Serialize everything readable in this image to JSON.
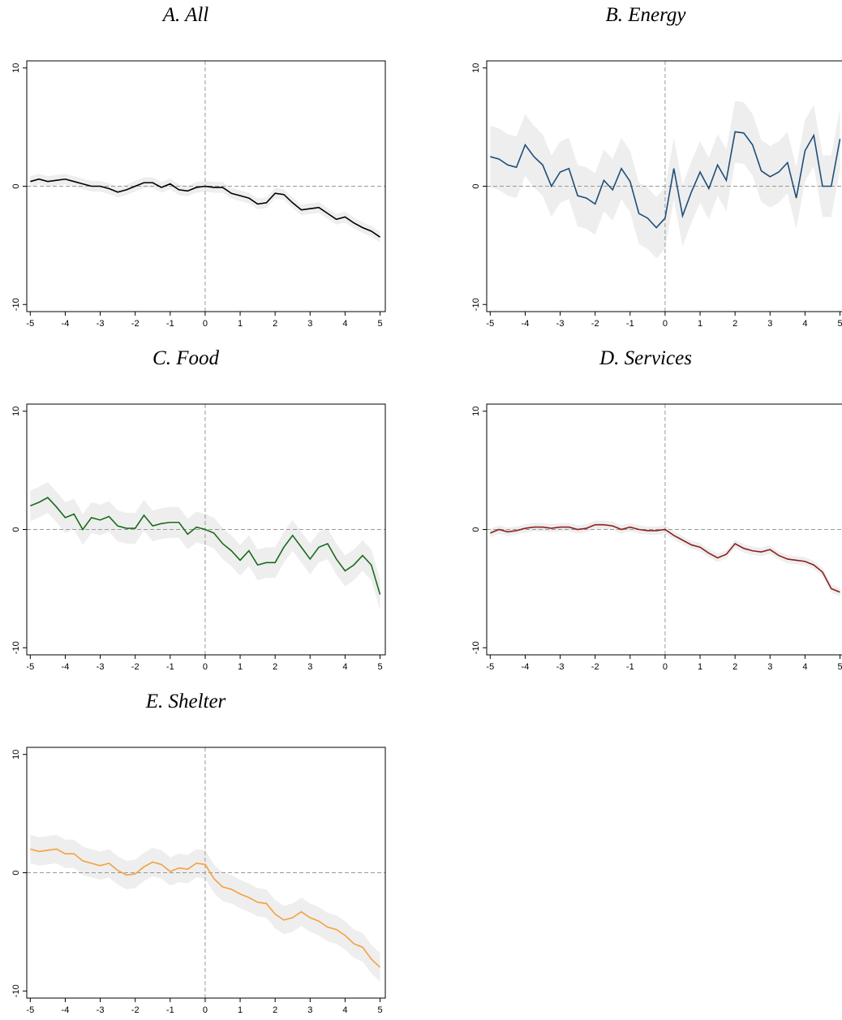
{
  "chart_data": [
    {
      "type": "line",
      "title": "A. All",
      "x": [
        -5,
        -4.75,
        -4.5,
        -4.25,
        -4,
        -3.75,
        -3.5,
        -3.25,
        -3,
        -2.75,
        -2.5,
        -2.25,
        -2,
        -1.75,
        -1.5,
        -1.25,
        -1,
        -0.75,
        -0.5,
        -0.25,
        0,
        0.25,
        0.5,
        0.75,
        1,
        1.25,
        1.5,
        1.75,
        2,
        2.25,
        2.5,
        2.75,
        3,
        3.25,
        3.5,
        3.75,
        4,
        4.25,
        4.5,
        4.75,
        5
      ],
      "series": [
        {
          "color": "#000000",
          "band_color": "#eeeeee",
          "error": 0.45,
          "values": [
            0.4,
            0.6,
            0.4,
            0.5,
            0.6,
            0.4,
            0.2,
            0,
            0,
            -0.2,
            -0.5,
            -0.3,
            0,
            0.3,
            0.3,
            -0.1,
            0.2,
            -0.3,
            -0.4,
            -0.1,
            0,
            -0.1,
            -0.1,
            -0.6,
            -0.8,
            -1,
            -1.5,
            -1.4,
            -0.6,
            -0.7,
            -1.4,
            -2,
            -1.9,
            -1.8,
            -2.3,
            -2.8,
            -2.6,
            -3.1,
            -3.5,
            -3.8,
            -4.3
          ]
        }
      ],
      "xlim": [
        -5.1,
        5.15
      ],
      "ylim": [
        -10.6,
        10.6
      ],
      "xticks": [
        -5,
        -4,
        -3,
        -2,
        -1,
        0,
        1,
        2,
        3,
        4,
        5
      ],
      "yticks": [
        -10,
        0,
        10
      ],
      "hline": 0,
      "vline": 0
    },
    {
      "type": "line",
      "title": "B. Energy",
      "x": [
        -5,
        -4.75,
        -4.5,
        -4.25,
        -4,
        -3.75,
        -3.5,
        -3.25,
        -3,
        -2.75,
        -2.5,
        -2.25,
        -2,
        -1.75,
        -1.5,
        -1.25,
        -1,
        -0.75,
        -0.5,
        -0.25,
        0,
        0.25,
        0.5,
        0.75,
        1,
        1.25,
        1.5,
        1.75,
        2,
        2.25,
        2.5,
        2.75,
        3,
        3.25,
        3.5,
        3.75,
        4,
        4.25,
        4.5,
        4.75,
        5
      ],
      "series": [
        {
          "color": "#1f4e79",
          "band_color": "#eeeeee",
          "error": 2.6,
          "values": [
            2.5,
            2.3,
            1.8,
            1.6,
            3.5,
            2.5,
            1.8,
            0,
            1.2,
            1.5,
            -0.8,
            -1,
            -1.5,
            0.5,
            -0.3,
            1.5,
            0.4,
            -2.3,
            -2.7,
            -3.5,
            -2.7,
            1.5,
            -2.5,
            -0.5,
            1.2,
            -0.2,
            1.8,
            0.5,
            4.6,
            4.5,
            3.5,
            1.3,
            0.8,
            1.2,
            2,
            -1,
            3,
            4.3,
            0,
            0,
            4
          ]
        }
      ],
      "xlim": [
        -5.1,
        5.15
      ],
      "ylim": [
        -10.6,
        10.6
      ],
      "xticks": [
        -5,
        -4,
        -3,
        -2,
        -1,
        0,
        1,
        2,
        3,
        4,
        5
      ],
      "yticks": [
        -10,
        0,
        10
      ],
      "hline": 0,
      "vline": 0
    },
    {
      "type": "line",
      "title": "C. Food",
      "x": [
        -5,
        -4.75,
        -4.5,
        -4.25,
        -4,
        -3.75,
        -3.5,
        -3.25,
        -3,
        -2.75,
        -2.5,
        -2.25,
        -2,
        -1.75,
        -1.5,
        -1.25,
        -1,
        -0.75,
        -0.5,
        -0.25,
        0,
        0.25,
        0.5,
        0.75,
        1,
        1.25,
        1.5,
        1.75,
        2,
        2.25,
        2.5,
        2.75,
        3,
        3.25,
        3.5,
        3.75,
        4,
        4.25,
        4.5,
        4.75,
        5
      ],
      "series": [
        {
          "color": "#1a6b1a",
          "band_color": "#eeeeee",
          "error": 1.3,
          "values": [
            2,
            2.3,
            2.7,
            1.9,
            1,
            1.3,
            0,
            1,
            0.8,
            1.1,
            0.3,
            0.1,
            0.1,
            1.2,
            0.3,
            0.5,
            0.6,
            0.6,
            -0.4,
            0.2,
            0,
            -0.3,
            -1.2,
            -1.8,
            -2.6,
            -1.8,
            -3,
            -2.8,
            -2.8,
            -1.5,
            -0.5,
            -1.5,
            -2.5,
            -1.5,
            -1.2,
            -2.5,
            -3.5,
            -3,
            -2.2,
            -3,
            -5.5
          ]
        }
      ],
      "xlim": [
        -5.1,
        5.15
      ],
      "ylim": [
        -10.6,
        10.6
      ],
      "xticks": [
        -5,
        -4,
        -3,
        -2,
        -1,
        0,
        1,
        2,
        3,
        4,
        5
      ],
      "yticks": [
        -10,
        0,
        10
      ],
      "hline": 0,
      "vline": 0
    },
    {
      "type": "line",
      "title": "D. Services",
      "x": [
        -5,
        -4.75,
        -4.5,
        -4.25,
        -4,
        -3.75,
        -3.5,
        -3.25,
        -3,
        -2.75,
        -2.5,
        -2.25,
        -2,
        -1.75,
        -1.5,
        -1.25,
        -1,
        -0.75,
        -0.5,
        -0.25,
        0,
        0.25,
        0.5,
        0.75,
        1,
        1.25,
        1.5,
        1.75,
        2,
        2.25,
        2.5,
        2.75,
        3,
        3.25,
        3.5,
        3.75,
        4,
        4.25,
        4.5,
        4.75,
        5
      ],
      "series": [
        {
          "color": "#8b2020",
          "band_color": "#eeeeee",
          "error": 0.35,
          "values": [
            -0.3,
            0,
            -0.2,
            -0.1,
            0.1,
            0.2,
            0.2,
            0.1,
            0.2,
            0.2,
            0,
            0.1,
            0.4,
            0.4,
            0.3,
            0,
            0.2,
            0,
            -0.1,
            -0.1,
            0,
            -0.5,
            -0.9,
            -1.3,
            -1.5,
            -2,
            -2.4,
            -2.1,
            -1.2,
            -1.6,
            -1.8,
            -1.9,
            -1.7,
            -2.2,
            -2.5,
            -2.6,
            -2.7,
            -3,
            -3.6,
            -5,
            -5.3
          ]
        }
      ],
      "xlim": [
        -5.1,
        5.15
      ],
      "ylim": [
        -10.6,
        10.6
      ],
      "xticks": [
        -5,
        -4,
        -3,
        -2,
        -1,
        0,
        1,
        2,
        3,
        4,
        5
      ],
      "yticks": [
        -10,
        0,
        10
      ],
      "hline": 0,
      "vline": 0
    },
    {
      "type": "line",
      "title": "E. Shelter",
      "x": [
        -5,
        -4.75,
        -4.5,
        -4.25,
        -4,
        -3.75,
        -3.5,
        -3.25,
        -3,
        -2.75,
        -2.5,
        -2.25,
        -2,
        -1.75,
        -1.5,
        -1.25,
        -1,
        -0.75,
        -0.5,
        -0.25,
        0,
        0.25,
        0.5,
        0.75,
        1,
        1.25,
        1.5,
        1.75,
        2,
        2.25,
        2.5,
        2.75,
        3,
        3.25,
        3.5,
        3.75,
        4,
        4.25,
        4.5,
        4.75,
        5
      ],
      "series": [
        {
          "color": "#f4a040",
          "band_color": "#eeeeee",
          "error": 1.2,
          "values": [
            2,
            1.8,
            1.9,
            2,
            1.6,
            1.6,
            1,
            0.8,
            0.6,
            0.8,
            0.2,
            -0.2,
            -0.1,
            0.5,
            0.9,
            0.7,
            0.1,
            0.4,
            0.3,
            0.8,
            0.7,
            -0.5,
            -1.2,
            -1.4,
            -1.8,
            -2.1,
            -2.5,
            -2.6,
            -3.5,
            -4,
            -3.8,
            -3.3,
            -3.8,
            -4.1,
            -4.6,
            -4.8,
            -5.3,
            -6,
            -6.3,
            -7.3,
            -8
          ]
        }
      ],
      "xlim": [
        -5.1,
        5.15
      ],
      "ylim": [
        -10.6,
        10.6
      ],
      "xticks": [
        -5,
        -4,
        -3,
        -2,
        -1,
        0,
        1,
        2,
        3,
        4,
        5
      ],
      "yticks": [
        -10,
        0,
        10
      ],
      "hline": 0,
      "vline": 0
    }
  ]
}
